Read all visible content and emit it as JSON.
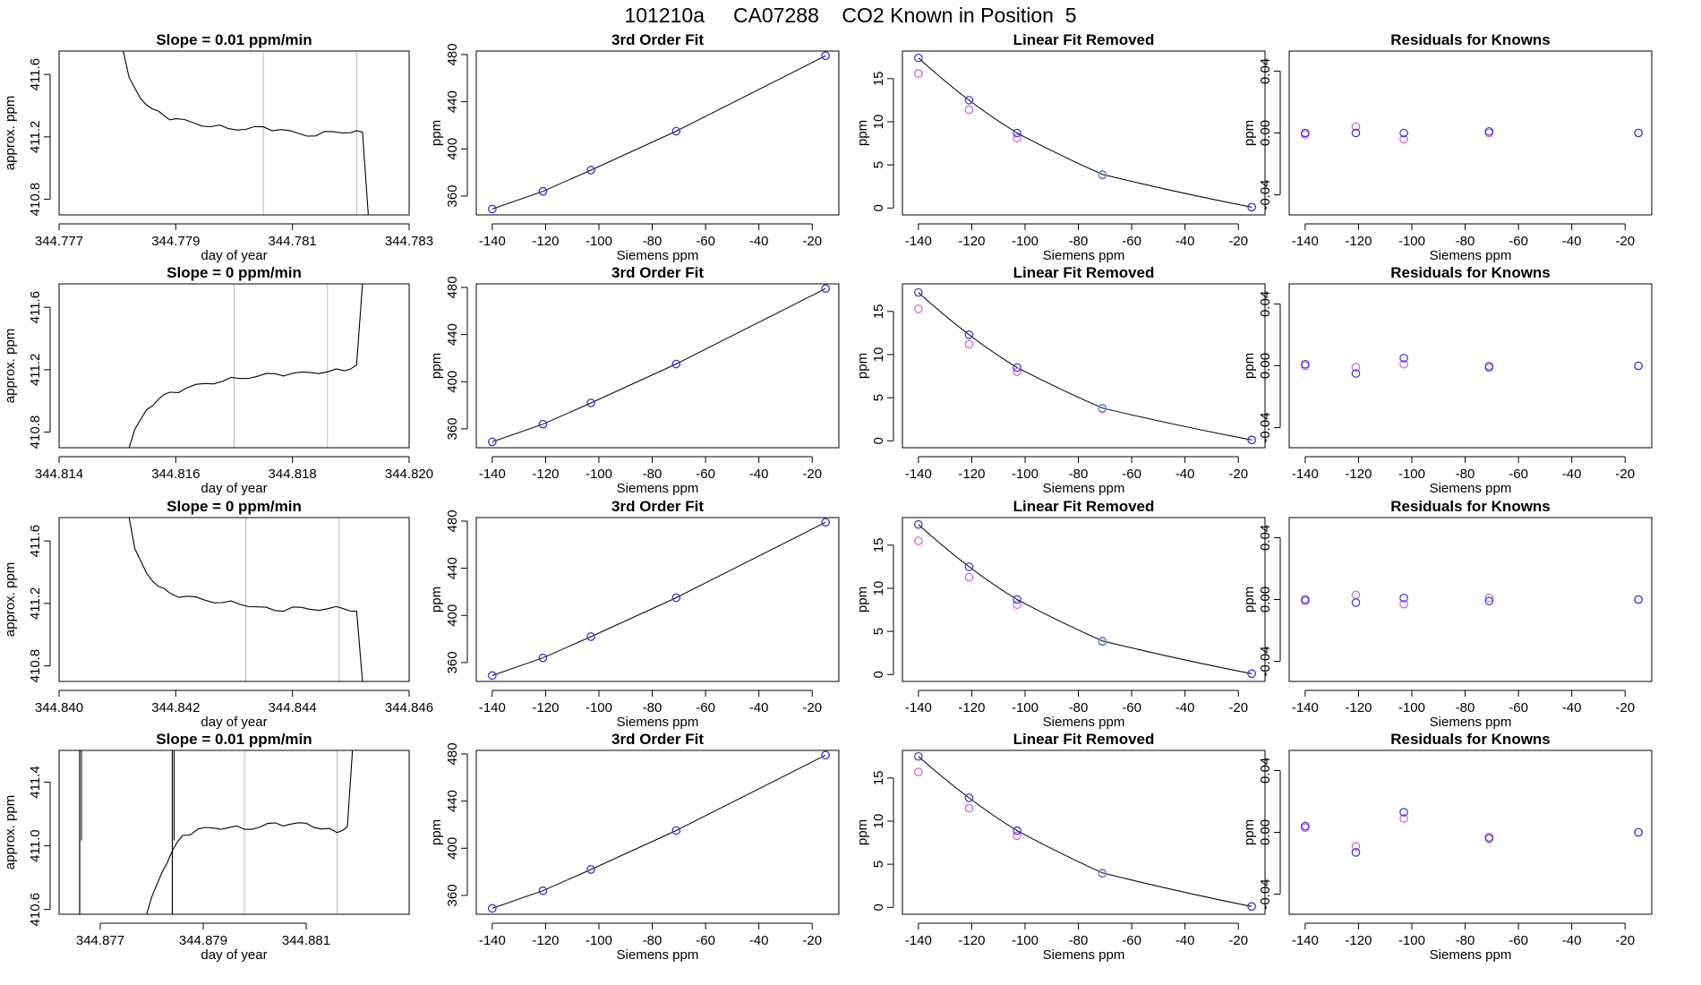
{
  "title": "101210a     CA07288    CO2 Known in Position  5",
  "colors": {
    "line": "#000000",
    "blue": "#3333dd",
    "magenta": "#dd55dd",
    "cyan": "#44aacc",
    "grey": "#bbbbbb",
    "red": "#ff4444"
  },
  "chart_data": [
    {
      "type": "line",
      "panel": "time",
      "row": 1,
      "title": "Slope =  0.01  ppm/min",
      "xlabel": "day of year",
      "ylabel": "approx. ppm",
      "xlim": [
        344.777,
        344.783
      ],
      "xticks": [
        "344.777",
        "344.779",
        "344.781",
        "344.783"
      ],
      "ylim": [
        410.7,
        411.75
      ],
      "yticks": [
        "410.8",
        "411.2",
        "411.6"
      ],
      "vlines": [
        344.7805,
        344.7821
      ],
      "series": {
        "x": [
          344.7781,
          344.7782,
          344.7784,
          344.7786,
          344.7788,
          344.779,
          344.7793,
          344.7796,
          344.7799,
          344.7802,
          344.7805,
          344.7808,
          344.7811,
          344.7814,
          344.7817,
          344.782,
          344.7822,
          344.7823
        ],
        "y": [
          411.75,
          411.58,
          411.45,
          411.38,
          411.33,
          411.31,
          411.29,
          411.27,
          411.26,
          411.25,
          411.26,
          411.24,
          411.22,
          411.21,
          411.24,
          411.23,
          411.23,
          410.7
        ]
      }
    },
    {
      "type": "line",
      "panel": "fit",
      "row": 1,
      "title": "3rd Order Fit",
      "xlabel": "Siemens ppm",
      "ylabel": "ppm",
      "xlim": [
        -146,
        -10
      ],
      "xticks": [
        "-140",
        "-120",
        "-100",
        "-80",
        "-60",
        "-40",
        "-20"
      ],
      "ylim": [
        344,
        483
      ],
      "yticks": [
        "360",
        "400",
        "440",
        "480"
      ],
      "x": [
        -140,
        -121,
        -103,
        -71,
        -15
      ],
      "y": [
        349,
        364,
        382,
        415,
        479
      ],
      "y_magenta": [
        349,
        364,
        382,
        415,
        479
      ]
    },
    {
      "type": "line",
      "panel": "linfit",
      "row": 1,
      "title": "Linear Fit Removed",
      "xlabel": "Siemens ppm",
      "ylabel": "ppm",
      "xlim": [
        -146,
        -10
      ],
      "xticks": [
        "-140",
        "-120",
        "-100",
        "-80",
        "-60",
        "-40",
        "-20"
      ],
      "ylim": [
        -0.8,
        18.2
      ],
      "yticks": [
        "0",
        "5",
        "10",
        "15"
      ],
      "x": [
        -140,
        -121,
        -103,
        -71,
        -15
      ],
      "y": [
        17.4,
        12.5,
        8.7,
        3.9,
        0.1
      ],
      "y_magenta": [
        15.6,
        11.4,
        8.1,
        3.8,
        0.1
      ]
    },
    {
      "type": "scatter",
      "panel": "residuals",
      "row": 1,
      "title": "Residuals for Knowns",
      "xlabel": "Siemens ppm",
      "ylabel": "ppm",
      "xlim": [
        -146,
        -10
      ],
      "xticks": [
        "-140",
        "-120",
        "-100",
        "-80",
        "-60",
        "-40",
        "-20"
      ],
      "ylim": [
        -0.053,
        0.053
      ],
      "yticks": [
        "-0.04",
        "0.00",
        "0.04"
      ],
      "x": [
        -140,
        -121,
        -103,
        -71,
        -15
      ],
      "y": [
        0.0,
        0.0,
        0.0,
        0.001,
        0.0
      ],
      "y_magenta": [
        -0.001,
        0.004,
        -0.004,
        0.0,
        0.0
      ]
    },
    {
      "type": "line",
      "panel": "time",
      "row": 2,
      "title": "Slope =  0  ppm/min",
      "xlabel": "day of year",
      "ylabel": "approx. ppm",
      "xlim": [
        344.814,
        344.82
      ],
      "xticks": [
        "344.814",
        "344.816",
        "344.818",
        "344.820"
      ],
      "ylim": [
        410.7,
        411.75
      ],
      "yticks": [
        "410.8",
        "411.2",
        "411.6"
      ],
      "vlines": [
        344.817,
        344.8186
      ],
      "series": {
        "x": [
          344.8152,
          344.8153,
          344.8155,
          344.8157,
          344.8159,
          344.8162,
          344.8165,
          344.8168,
          344.8171,
          344.8174,
          344.8177,
          344.818,
          344.8183,
          344.8186,
          344.8189,
          344.8191,
          344.8192
        ],
        "y": [
          410.7,
          410.82,
          410.95,
          411.01,
          411.05,
          411.08,
          411.11,
          411.13,
          411.15,
          411.16,
          411.17,
          411.17,
          411.18,
          411.19,
          411.2,
          411.23,
          411.75
        ]
      }
    },
    {
      "type": "line",
      "panel": "fit",
      "row": 2,
      "title": "3rd Order Fit",
      "xlabel": "Siemens ppm",
      "ylabel": "ppm",
      "xlim": [
        -146,
        -10
      ],
      "xticks": [
        "-140",
        "-120",
        "-100",
        "-80",
        "-60",
        "-40",
        "-20"
      ],
      "ylim": [
        344,
        483
      ],
      "yticks": [
        "360",
        "400",
        "440",
        "480"
      ],
      "x": [
        -140,
        -121,
        -103,
        -71,
        -15
      ],
      "y": [
        349,
        364,
        382,
        415,
        479
      ],
      "y_magenta": [
        349,
        364,
        382,
        415,
        479
      ]
    },
    {
      "type": "line",
      "panel": "linfit",
      "row": 2,
      "title": "Linear Fit Removed",
      "xlabel": "Siemens ppm",
      "ylabel": "ppm",
      "xlim": [
        -146,
        -10
      ],
      "xticks": [
        "-140",
        "-120",
        "-100",
        "-80",
        "-60",
        "-40",
        "-20"
      ],
      "ylim": [
        -0.8,
        18.2
      ],
      "yticks": [
        "0",
        "5",
        "10",
        "15"
      ],
      "x": [
        -140,
        -121,
        -103,
        -71,
        -15
      ],
      "y": [
        17.2,
        12.3,
        8.5,
        3.8,
        0.1
      ],
      "y_magenta": [
        15.3,
        11.2,
        8.0,
        3.7,
        0.1
      ]
    },
    {
      "type": "scatter",
      "panel": "residuals",
      "row": 2,
      "title": "Residuals for Knowns",
      "xlabel": "Siemens ppm",
      "ylabel": "ppm",
      "xlim": [
        -146,
        -10
      ],
      "xticks": [
        "-140",
        "-120",
        "-100",
        "-80",
        "-60",
        "-40",
        "-20"
      ],
      "ylim": [
        -0.053,
        0.053
      ],
      "yticks": [
        "-0.04",
        "0.00",
        "0.04"
      ],
      "x": [
        -140,
        -121,
        -103,
        -71,
        -15
      ],
      "y": [
        0.001,
        -0.005,
        0.005,
        -0.001,
        0.0
      ],
      "y_magenta": [
        0.0,
        -0.001,
        0.001,
        0.0,
        0.0
      ]
    },
    {
      "type": "line",
      "panel": "time",
      "row": 3,
      "title": "Slope =  0  ppm/min",
      "xlabel": "day of year",
      "ylabel": "approx. ppm",
      "xlim": [
        344.84,
        344.846
      ],
      "xticks": [
        "344.840",
        "344.842",
        "344.844",
        "344.846"
      ],
      "ylim": [
        410.7,
        411.75
      ],
      "yticks": [
        "410.8",
        "411.2",
        "411.6"
      ],
      "vlines": [
        344.8432,
        344.8448
      ],
      "series": {
        "x": [
          344.8412,
          344.8413,
          344.8415,
          344.8417,
          344.8419,
          344.8422,
          344.8425,
          344.8428,
          344.8431,
          344.8434,
          344.8437,
          344.844,
          344.8443,
          344.8446,
          344.8449,
          344.8451,
          344.8452
        ],
        "y": [
          411.75,
          411.55,
          411.4,
          411.31,
          411.26,
          411.24,
          411.22,
          411.21,
          411.2,
          411.18,
          411.15,
          411.17,
          411.16,
          411.17,
          411.17,
          411.15,
          410.7
        ]
      }
    },
    {
      "type": "line",
      "panel": "fit",
      "row": 3,
      "title": "3rd Order Fit",
      "xlabel": "Siemens ppm",
      "ylabel": "ppm",
      "xlim": [
        -146,
        -10
      ],
      "xticks": [
        "-140",
        "-120",
        "-100",
        "-80",
        "-60",
        "-40",
        "-20"
      ],
      "ylim": [
        344,
        483
      ],
      "yticks": [
        "360",
        "400",
        "440",
        "480"
      ],
      "x": [
        -140,
        -121,
        -103,
        -71,
        -15
      ],
      "y": [
        349,
        364,
        382,
        415,
        479
      ],
      "y_magenta": [
        349,
        364,
        382,
        415,
        479
      ]
    },
    {
      "type": "line",
      "panel": "linfit",
      "row": 3,
      "title": "Linear Fit Removed",
      "xlabel": "Siemens ppm",
      "ylabel": "ppm",
      "xlim": [
        -146,
        -10
      ],
      "xticks": [
        "-140",
        "-120",
        "-100",
        "-80",
        "-60",
        "-40",
        "-20"
      ],
      "ylim": [
        -0.8,
        18.2
      ],
      "yticks": [
        "0",
        "5",
        "10",
        "15"
      ],
      "x": [
        -140,
        -121,
        -103,
        -71,
        -15
      ],
      "y": [
        17.4,
        12.5,
        8.7,
        3.9,
        0.1
      ],
      "y_magenta": [
        15.5,
        11.3,
        8.1,
        3.8,
        0.1
      ]
    },
    {
      "type": "scatter",
      "panel": "residuals",
      "row": 3,
      "title": "Residuals for Knowns",
      "xlabel": "Siemens ppm",
      "ylabel": "ppm",
      "xlim": [
        -146,
        -10
      ],
      "xticks": [
        "-140",
        "-120",
        "-100",
        "-80",
        "-60",
        "-40",
        "-20"
      ],
      "ylim": [
        -0.053,
        0.053
      ],
      "yticks": [
        "-0.04",
        "0.00",
        "0.04"
      ],
      "x": [
        -140,
        -121,
        -103,
        -71,
        -15
      ],
      "y": [
        0.0,
        -0.002,
        0.001,
        -0.001,
        0.0
      ],
      "y_magenta": [
        -0.001,
        0.003,
        -0.003,
        0.001,
        0.0
      ]
    },
    {
      "type": "line",
      "panel": "time",
      "row": 4,
      "title": "Slope =  0.01  ppm/min",
      "xlabel": "day of year",
      "ylabel": "approx. ppm",
      "xlim": [
        344.8762,
        344.883
      ],
      "xticks": [
        "344.877",
        "344.879",
        "344.881"
      ],
      "ylim": [
        410.57,
        411.6
      ],
      "yticks": [
        "410.6",
        "411.0",
        "411.4"
      ],
      "vlines": [
        344.8798,
        344.8816
      ],
      "spikes": [
        344.8766,
        344.8784
      ],
      "series": {
        "x": [
          344.8779,
          344.878,
          344.8782,
          344.8784,
          344.8786,
          344.8789,
          344.8792,
          344.8795,
          344.8798,
          344.8801,
          344.8804,
          344.8807,
          344.881,
          344.8813,
          344.8816,
          344.8818,
          344.8819
        ],
        "y": [
          410.57,
          410.68,
          410.84,
          410.97,
          411.06,
          411.1,
          411.11,
          411.12,
          411.11,
          411.12,
          411.14,
          411.13,
          411.14,
          411.11,
          411.09,
          411.12,
          411.6
        ]
      }
    },
    {
      "type": "line",
      "panel": "fit",
      "row": 4,
      "title": "3rd Order Fit",
      "xlabel": "Siemens ppm",
      "ylabel": "ppm",
      "xlim": [
        -146,
        -10
      ],
      "xticks": [
        "-140",
        "-120",
        "-100",
        "-80",
        "-60",
        "-40",
        "-20"
      ],
      "ylim": [
        344,
        483
      ],
      "yticks": [
        "360",
        "400",
        "440",
        "480"
      ],
      "x": [
        -140,
        -121,
        -103,
        -71,
        -15
      ],
      "y": [
        349,
        364,
        382,
        415,
        479
      ],
      "y_magenta": [
        349,
        364,
        382,
        415,
        479
      ]
    },
    {
      "type": "line",
      "panel": "linfit",
      "row": 4,
      "title": "Linear Fit Removed",
      "xlabel": "Siemens ppm",
      "ylabel": "ppm",
      "xlim": [
        -146,
        -10
      ],
      "xticks": [
        "-140",
        "-120",
        "-100",
        "-80",
        "-60",
        "-40",
        "-20"
      ],
      "ylim": [
        -0.8,
        18.2
      ],
      "yticks": [
        "0",
        "5",
        "10",
        "15"
      ],
      "x": [
        -140,
        -121,
        -103,
        -71,
        -15
      ],
      "y": [
        17.5,
        12.7,
        8.9,
        4.0,
        0.1
      ],
      "y_magenta": [
        15.7,
        11.5,
        8.3,
        3.9,
        0.1
      ]
    },
    {
      "type": "scatter",
      "panel": "residuals",
      "row": 4,
      "title": "Residuals for Knowns",
      "xlabel": "Siemens ppm",
      "ylabel": "ppm",
      "xlim": [
        -146,
        -10
      ],
      "xticks": [
        "-140",
        "-120",
        "-100",
        "-80",
        "-60",
        "-40",
        "-20"
      ],
      "ylim": [
        -0.053,
        0.053
      ],
      "yticks": [
        "-0.04",
        "0.00",
        "0.04"
      ],
      "x": [
        -140,
        -121,
        -103,
        -71,
        -15
      ],
      "y": [
        0.004,
        -0.013,
        0.013,
        -0.004,
        0.0
      ],
      "y_magenta": [
        0.003,
        -0.009,
        0.009,
        -0.003,
        0.0
      ]
    }
  ]
}
